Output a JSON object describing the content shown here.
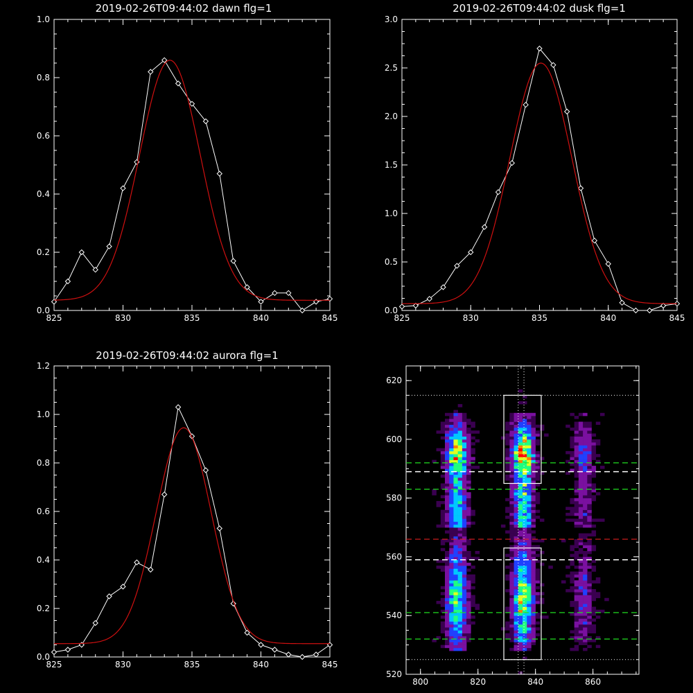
{
  "colors": {
    "background": "#000000",
    "data": "#ffffff",
    "fit": "#d01010"
  },
  "chart_data": [
    {
      "type": "line",
      "title": "2019-02-26T09:44:02 dawn flg=1",
      "xlim": [
        825,
        845
      ],
      "ylim": [
        0,
        1.0
      ],
      "xticks": [
        "825",
        "830",
        "835",
        "840",
        "845"
      ],
      "yticks": [
        "0.0",
        "0.2",
        "0.4",
        "0.6",
        "0.8",
        "1.0"
      ],
      "series": [
        {
          "marker": "diamond",
          "color": "#ffffff",
          "x": [
            825,
            826,
            827,
            828,
            829,
            830,
            831,
            832,
            833,
            834,
            835,
            836,
            837,
            838,
            839,
            840,
            841,
            842,
            843,
            844,
            845
          ],
          "y": [
            0.03,
            0.1,
            0.2,
            0.14,
            0.22,
            0.42,
            0.51,
            0.82,
            0.86,
            0.78,
            0.71,
            0.65,
            0.47,
            0.17,
            0.08,
            0.03,
            0.06,
            0.06,
            -0.02,
            0.03,
            0.04
          ]
        },
        {
          "marker": "none",
          "color": "#d01010",
          "gauss": {
            "amp": 0.825,
            "center": 833.4,
            "sigma": 2.2,
            "base": 0.035
          }
        }
      ]
    },
    {
      "type": "line",
      "title": "2019-02-26T09:44:02 dusk flg=1",
      "xlim": [
        825,
        845
      ],
      "ylim": [
        0,
        3.0
      ],
      "xticks": [
        "825",
        "830",
        "835",
        "840",
        "845"
      ],
      "yticks": [
        "0.0",
        "0.5",
        "1.0",
        "1.5",
        "2.0",
        "2.5",
        "3.0"
      ],
      "series": [
        {
          "marker": "diamond",
          "color": "#ffffff",
          "x": [
            825,
            826,
            827,
            828,
            829,
            830,
            831,
            832,
            833,
            834,
            835,
            836,
            837,
            838,
            839,
            840,
            841,
            842,
            843,
            844,
            845
          ],
          "y": [
            0.04,
            0.05,
            0.12,
            0.24,
            0.46,
            0.6,
            0.86,
            1.22,
            1.52,
            2.12,
            2.7,
            2.53,
            2.05,
            1.26,
            0.72,
            0.48,
            0.08,
            -0.02,
            -0.01,
            0.05,
            0.07
          ]
        },
        {
          "marker": "none",
          "color": "#d01010",
          "gauss": {
            "amp": 2.48,
            "center": 835.1,
            "sigma": 2.25,
            "base": 0.07
          }
        }
      ]
    },
    {
      "type": "line",
      "title": "2019-02-26T09:44:02 aurora flg=1",
      "xlim": [
        825,
        845
      ],
      "ylim": [
        0,
        1.2
      ],
      "xticks": [
        "825",
        "830",
        "835",
        "840",
        "845"
      ],
      "yticks": [
        "0.0",
        "0.2",
        "0.4",
        "0.6",
        "0.8",
        "1.0",
        "1.2"
      ],
      "series": [
        {
          "marker": "diamond",
          "color": "#ffffff",
          "x": [
            825,
            826,
            827,
            828,
            829,
            830,
            831,
            832,
            833,
            834,
            835,
            836,
            837,
            838,
            839,
            840,
            841,
            842,
            843,
            844,
            845
          ],
          "y": [
            0.02,
            0.03,
            0.05,
            0.14,
            0.25,
            0.29,
            0.39,
            0.36,
            0.67,
            1.03,
            0.91,
            0.77,
            0.53,
            0.22,
            0.1,
            0.05,
            0.03,
            0.01,
            -0.01,
            0.01,
            0.05
          ]
        },
        {
          "marker": "none",
          "color": "#d01010",
          "gauss": {
            "amp": 0.89,
            "center": 834.4,
            "sigma": 2.0,
            "base": 0.055
          }
        }
      ]
    },
    {
      "type": "heatmap",
      "title": "",
      "xlim": [
        795,
        876
      ],
      "ylim": [
        520,
        625
      ],
      "xticks": [
        "800",
        "820",
        "840",
        "860"
      ],
      "yticks": [
        "520",
        "540",
        "560",
        "580",
        "600",
        "620"
      ],
      "colorscale": [
        "#000000",
        "#3a0050",
        "#7a10a0",
        "#2040ff",
        "#00c8ff",
        "#20ff80",
        "#e0ff20",
        "#ff8000",
        "#ff0000"
      ],
      "emission_columns": [
        {
          "center": 812,
          "strength": 0.85,
          "width": 2.5
        },
        {
          "center": 835,
          "strength": 1.0,
          "width": 2.5
        },
        {
          "center": 856,
          "strength": 0.35,
          "width": 2.5
        }
      ],
      "boxes": [
        {
          "x": [
            829,
            842
          ],
          "y": [
            585,
            615
          ]
        },
        {
          "x": [
            829,
            842
          ],
          "y": [
            525,
            563
          ]
        }
      ],
      "lines": {
        "white_dashed_y": [
          589,
          559
        ],
        "green_dashed_y": [
          592,
          583,
          541,
          532
        ],
        "red_dashed_y": [
          566
        ],
        "white_dotted_y": [
          615,
          525
        ],
        "white_dotted_x": [
          834,
          836
        ]
      }
    }
  ]
}
